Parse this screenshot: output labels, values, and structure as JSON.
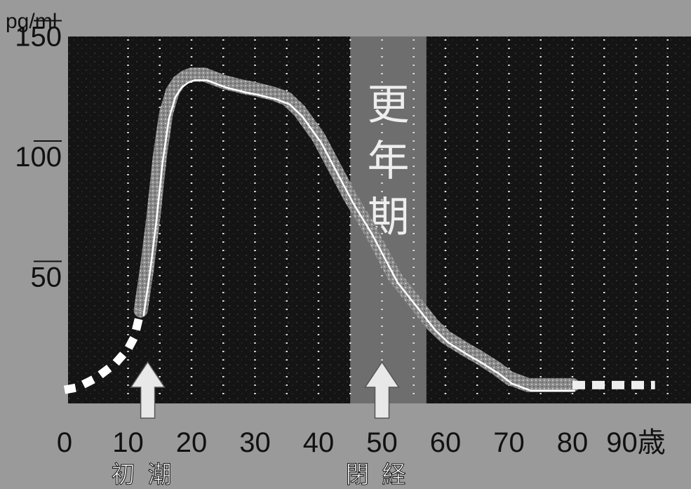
{
  "chart_data": {
    "type": "line",
    "ylabel": "pg/ml",
    "xlabel": "歳",
    "xlim": [
      0,
      100
    ],
    "ylim": [
      0,
      150
    ],
    "x_ticks": [
      "0",
      "10",
      "20",
      "30",
      "40",
      "50",
      "60",
      "70",
      "80",
      "90歳"
    ],
    "y_ticks": [
      "150",
      "100",
      "50"
    ],
    "grid": "vertical dotted lines every 5 years",
    "band": {
      "label": "更年期",
      "x_range": [
        45,
        57
      ]
    },
    "series": [
      {
        "values_x": [
          0,
          2,
          5,
          8,
          10,
          11,
          12,
          13,
          14,
          15,
          16,
          17,
          18,
          19,
          20,
          22,
          25,
          28,
          30,
          33,
          35,
          37,
          40,
          43,
          45,
          48,
          50,
          52,
          55,
          58,
          60,
          63,
          65,
          68,
          70,
          73,
          75,
          78,
          80,
          83,
          85,
          88,
          90,
          93
        ],
        "values_y": [
          3,
          4,
          8,
          14,
          20,
          25,
          36,
          54,
          75,
          100,
          118,
          127,
          131,
          133,
          134,
          134,
          131,
          129,
          128,
          126,
          124,
          119,
          108,
          93,
          83,
          70,
          60,
          50,
          40,
          30,
          25,
          20,
          17,
          12,
          8,
          5,
          5,
          5,
          5,
          5,
          5,
          5,
          5,
          5
        ]
      }
    ],
    "annotations": [
      {
        "label": "初潮",
        "x": 12
      },
      {
        "label": "閉経",
        "x": 50
      }
    ]
  }
}
